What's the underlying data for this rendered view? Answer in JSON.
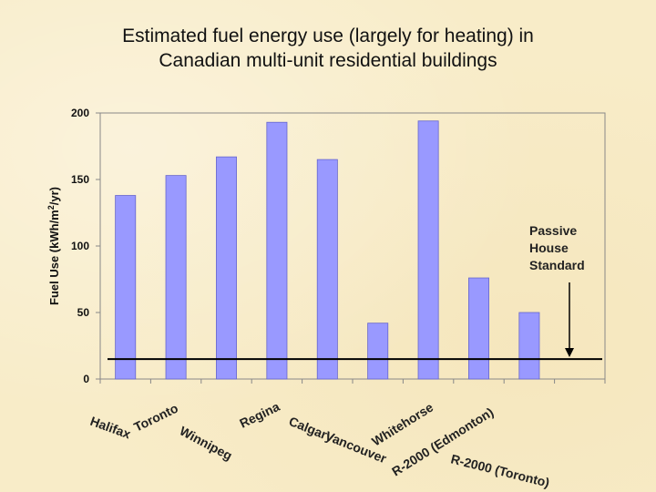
{
  "chart_data": {
    "type": "bar",
    "title_lines": [
      "Estimated fuel energy use (largely for heating) in",
      "Canadian multi-unit residential buildings"
    ],
    "ylabel_main": "Fuel Use (kWh/m",
    "ylabel_sup": "2",
    "ylabel_tail": "/yr)",
    "xlabel": "",
    "ylim": [
      0,
      200
    ],
    "yticks": [
      "0",
      "50",
      "100",
      "150",
      "200"
    ],
    "ytick_values": [
      0,
      50,
      100,
      150,
      200
    ],
    "categories": [
      "Halifax",
      "Toronto",
      "Winnipeg",
      "Regina",
      "Calgary",
      "Vancouver",
      "Whitehorse",
      "R-2000 (Edmonton)",
      "R-2000 (Toronto)",
      ""
    ],
    "values": [
      138,
      153,
      167,
      193,
      165,
      42,
      194,
      76,
      50,
      null
    ],
    "bar_color": "#9999ff",
    "reference_line": {
      "label": "Passive House Standard",
      "label_lines": [
        "Passive",
        "House",
        "Standard"
      ],
      "value": 15
    },
    "grid": false
  }
}
